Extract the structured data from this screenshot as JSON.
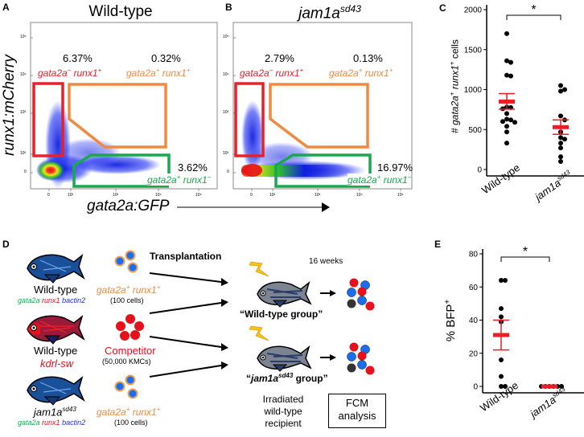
{
  "panels": {
    "A": {
      "letter": "A",
      "title": "Wild-type",
      "gates": {
        "red": {
          "percent": "6.37%",
          "label_a": "gata2a",
          "sup_a": "–",
          "label_b": " runx1",
          "sup_b": "+"
        },
        "orange": {
          "percent": "0.32%",
          "label_a": "gata2a",
          "sup_a": "+",
          "label_b": " runx1",
          "sup_b": "+"
        },
        "green": {
          "percent": "3.62%",
          "label_a": "gata2a",
          "sup_a": "+",
          "label_b": " runx1",
          "sup_b": "–"
        }
      }
    },
    "B": {
      "letter": "B",
      "title_main": "jam1a",
      "title_sup": "sd43",
      "gates": {
        "red": {
          "percent": "2.79%",
          "label_a": "gata2a",
          "sup_a": "–",
          "label_b": " runx1",
          "sup_b": "+"
        },
        "orange": {
          "percent": "0.13%",
          "label_a": "gata2a",
          "sup_a": "+",
          "label_b": " runx1",
          "sup_b": "+"
        },
        "green": {
          "percent": "16.97%",
          "label_a": "gata2a",
          "sup_a": "+",
          "label_b": " runx1",
          "sup_b": "–"
        }
      }
    },
    "C": {
      "letter": "C"
    },
    "D": {
      "letter": "D"
    },
    "E": {
      "letter": "E"
    }
  },
  "flow_axes": {
    "ylabel": "runx1:mCherry",
    "xlabel": "gata2a:GFP",
    "y_ticks": [
      "10⁵",
      "10⁴",
      "10³",
      "10²",
      "0"
    ],
    "x_ticks": [
      "0",
      "10²",
      "10³",
      "10⁴",
      "10⁵"
    ]
  },
  "colors": {
    "red_gate": "#e8202a",
    "orange_gate": "#f08a40",
    "green_gate": "#1aa84e",
    "sem_red": "#ee1c25",
    "cell_blue": "#1a6ff0",
    "cell_orange_ring": "#f0a050",
    "cell_red": "#e8101a",
    "cell_dark": "#333333",
    "fish_blue": "#1a4f9a",
    "fish_red": "#c0102a",
    "fish_gray": "#7b8490",
    "gene_green": "#1aa84e",
    "gene_red": "#e8101a",
    "gene_blue": "#2030d0",
    "lightning": "#f5c518"
  },
  "diagram": {
    "transplantation": "Transplantation",
    "weeks": "16 weeks",
    "donors": [
      {
        "name": "Wild-type",
        "name_sup": "",
        "genes": [
          "gata2a",
          "runx1",
          "bactin2"
        ],
        "cell_label_a": "gata2a",
        "cell_label_sup_a": "+",
        "cell_label_b": " runx1",
        "cell_label_sup_b": "+",
        "count": "(100 cells)"
      },
      {
        "name": "Wild-type",
        "name_sup": "",
        "genes_text": "kdrl-sw",
        "cell_label": "Competitor",
        "count": "(50,000 KMCs)"
      },
      {
        "name": "jam1a",
        "name_sup": "sd43",
        "genes": [
          "gata2a",
          "runx1",
          "bactin2"
        ],
        "cell_label_a": "gata2a",
        "cell_label_sup_a": "+",
        "cell_label_b": " runx1",
        "cell_label_sup_b": "+",
        "count": "(100 cells)"
      }
    ],
    "groups": [
      {
        "open_quote": "“",
        "name": "Wild-type group",
        "name_sup": "",
        "close_quote": "”"
      },
      {
        "open_quote": "“",
        "name": "jam1a",
        "name_sup": "sd43",
        "suffix": " group",
        "close_quote": "”"
      }
    ],
    "recipient_lines": [
      "Irradiated",
      "wild-type",
      "recipient"
    ],
    "fcm_lines": [
      "FCM",
      "analysis"
    ]
  },
  "chart_data": [
    {
      "id": "C",
      "type": "scatter",
      "title": "",
      "ylabel": "# gata2a⁺ runx1⁺ cells",
      "ylabel_a": "# ",
      "ylabel_b": "gata2a",
      "ylabel_sup_b": "+",
      "ylabel_c": " runx1",
      "ylabel_sup_c": "+",
      "ylabel_d": " cells",
      "ylim": [
        0,
        2000
      ],
      "yticks": [
        "0",
        "500",
        "1000",
        "1500",
        "2000"
      ],
      "ytick_values": [
        0,
        500,
        1000,
        1500,
        2000
      ],
      "categories": [
        "Wild-type",
        "jam1a"
      ],
      "category_sups": [
        "",
        "sd43"
      ],
      "series": [
        {
          "name": "Wild-type",
          "values": [
            1700,
            1360,
            1340,
            1180,
            1170,
            780,
            775,
            760,
            700,
            630,
            620,
            600,
            590,
            540,
            470,
            330
          ],
          "mean": 850,
          "sem_low": 755,
          "sem_high": 950
        },
        {
          "name": "jam1a sd43",
          "values": [
            1050,
            1000,
            980,
            670,
            620,
            470,
            400,
            380,
            330,
            270,
            160,
            100
          ],
          "mean": 530,
          "sem_low": 440,
          "sem_high": 620
        }
      ],
      "significance": "*"
    },
    {
      "id": "E",
      "type": "scatter",
      "ylabel": "% BFP⁺",
      "ylabel_a": "% BFP",
      "ylabel_sup": "+",
      "ylim": [
        0,
        80
      ],
      "yticks": [
        "0",
        "20",
        "40",
        "60",
        "80"
      ],
      "ytick_values": [
        0,
        20,
        40,
        60,
        80
      ],
      "categories": [
        "Wild-type",
        "jam1a"
      ],
      "category_sups": [
        "",
        "sd43"
      ],
      "series": [
        {
          "name": "Wild-type",
          "values": [
            64,
            64,
            47,
            42,
            39,
            16,
            6,
            0,
            0
          ],
          "mean": 31,
          "sem_low": 22,
          "sem_high": 40
        },
        {
          "name": "jam1a sd43",
          "values": [
            0,
            0,
            0,
            0,
            0,
            0
          ],
          "mean": 0,
          "sem_low": 0,
          "sem_high": 0
        }
      ],
      "significance": "*"
    }
  ]
}
